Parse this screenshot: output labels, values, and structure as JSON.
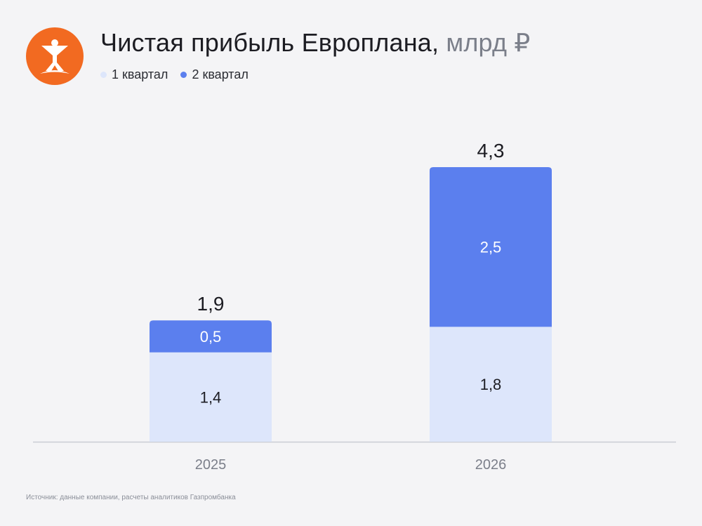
{
  "header": {
    "title": "Чистая прибыль Европлана,",
    "unit": "млрд ₽",
    "logo": "europlan-logo"
  },
  "colors": {
    "q1": "#dde6fb",
    "q2": "#5b7fee",
    "axis": "#c9ccd3",
    "text": "#1c1c22",
    "label_light": "#ffffff",
    "tick": "#7b7f8a",
    "logo_bg": "#f26a21"
  },
  "chart_data": {
    "type": "bar",
    "stacked": true,
    "title": "Чистая прибыль Европлана, млрд ₽",
    "categories": [
      "2025",
      "2026"
    ],
    "series": [
      {
        "name": "1 квартал",
        "values": [
          1.4,
          1.8
        ],
        "labels": [
          "1,4",
          "1,8"
        ]
      },
      {
        "name": "2 квартал",
        "values": [
          0.5,
          2.5
        ],
        "labels": [
          "0,5",
          "2,5"
        ]
      }
    ],
    "totals": [
      1.9,
      4.3
    ],
    "total_labels": [
      "1,9",
      "4,3"
    ],
    "ylim": [
      0,
      4.3
    ],
    "grid": false,
    "legend_position": "top-left"
  },
  "footer": {
    "source": "Источник: данные компании, расчеты аналитиков Газпромбанка"
  }
}
